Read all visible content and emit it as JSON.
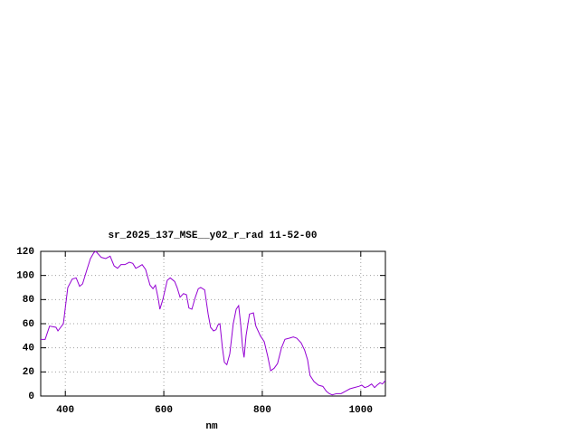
{
  "chart_data": {
    "type": "line",
    "title": "sr_2025_137_MSE__y02_r_rad 11-52-00",
    "x_label": "nm",
    "xlim": [
      350,
      1050
    ],
    "xticks": [
      400,
      600,
      800,
      1000
    ],
    "ylim": [
      0,
      120
    ],
    "yticks": [
      0,
      20,
      40,
      60,
      80,
      100,
      120
    ],
    "grid": true,
    "series": [
      {
        "color": "#9400d3",
        "x": [
          350,
          359,
          368,
          381,
          385,
          396,
          405,
          414,
          422,
          429,
          435,
          444,
          451,
          458,
          462,
          473,
          482,
          491,
          499,
          506,
          513,
          521,
          530,
          537,
          543,
          548,
          556,
          563,
          572,
          578,
          583,
          589,
          592,
          598,
          607,
          613,
          622,
          627,
          633,
          640,
          646,
          651,
          657,
          664,
          670,
          675,
          683,
          690,
          695,
          701,
          706,
          710,
          714,
          719,
          723,
          728,
          734,
          741,
          747,
          752,
          756,
          760,
          763,
          767,
          774,
          782,
          787,
          796,
          804,
          811,
          817,
          824,
          831,
          839,
          846,
          855,
          863,
          870,
          879,
          886,
          892,
          897,
          905,
          914,
          923,
          930,
          936,
          942,
          951,
          960,
          969,
          978,
          987,
          996,
          1002,
          1008,
          1015,
          1022,
          1028,
          1033,
          1039,
          1044,
          1050
        ],
        "values": [
          47,
          47,
          58,
          57,
          54,
          60,
          90,
          97,
          98,
          91,
          93,
          105,
          114,
          119,
          120,
          115,
          114,
          116,
          108,
          106,
          109,
          109,
          111,
          110,
          106,
          107,
          109,
          105,
          92,
          89,
          92,
          80,
          72,
          80,
          96,
          98,
          95,
          90,
          82,
          85,
          84,
          73,
          72,
          82,
          89,
          90,
          88,
          68,
          57,
          54,
          55,
          59,
          60,
          40,
          28,
          26,
          35,
          60,
          72,
          75,
          60,
          40,
          32,
          50,
          68,
          69,
          58,
          50,
          45,
          33,
          21,
          23,
          27,
          40,
          47,
          48,
          49,
          48,
          44,
          38,
          30,
          17,
          12,
          9,
          8,
          4,
          2,
          1,
          2,
          2,
          4,
          6,
          7,
          8,
          9,
          7,
          8,
          10,
          7,
          9,
          11,
          10,
          13
        ]
      }
    ]
  }
}
